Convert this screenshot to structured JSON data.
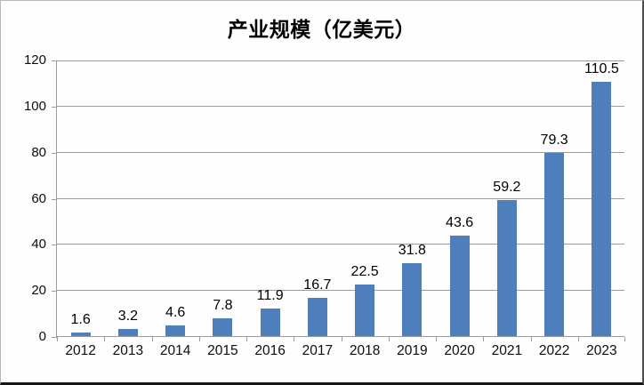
{
  "chart_data": {
    "type": "bar",
    "title": "产业规模（亿美元）",
    "categories": [
      "2012",
      "2013",
      "2014",
      "2015",
      "2016",
      "2017",
      "2018",
      "2019",
      "2020",
      "2021",
      "2022",
      "2023"
    ],
    "values": [
      1.6,
      3.2,
      4.6,
      7.8,
      11.9,
      16.7,
      22.5,
      31.8,
      43.6,
      59.2,
      79.3,
      110.5
    ],
    "value_labels": [
      "1.6",
      "3.2",
      "4.6",
      "7.8",
      "11.9",
      "16.7",
      "22.5",
      "31.8",
      "43.6",
      "59.2",
      "79.3",
      "110.5"
    ],
    "xlabel": "",
    "ylabel": "",
    "ylim": [
      0,
      120
    ],
    "yticks": [
      0,
      20,
      40,
      60,
      80,
      100,
      120
    ],
    "grid": "horizontal",
    "legend": "none",
    "bar_color": "#4e7fbc",
    "grid_color": "#9b9b9b",
    "axis_color": "#9b9b9b",
    "text_color": "#000000",
    "background_color": "#fefefe"
  }
}
